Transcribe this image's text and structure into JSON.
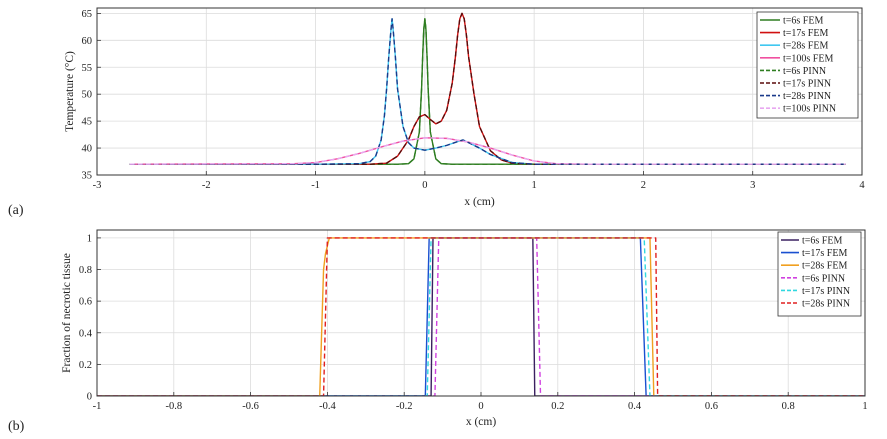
{
  "figure": {
    "panel_a_label": "(a)",
    "panel_b_label": "(b)"
  },
  "chart_data": [
    {
      "type": "line",
      "title": "",
      "xlabel": "x (cm)",
      "ylabel": "Temperature (°C)",
      "xlim": [
        -3,
        4
      ],
      "ylim": [
        35,
        66
      ],
      "xticks": [
        -3,
        -2,
        -1,
        0,
        1,
        2,
        3,
        4
      ],
      "yticks": [
        35,
        40,
        45,
        50,
        55,
        60,
        65
      ],
      "xtick_labels": [
        "-3",
        "-2",
        "-1",
        "0",
        "1",
        "2",
        "3",
        "4"
      ],
      "ytick_labels": [
        "35",
        "40",
        "45",
        "50",
        "55",
        "60",
        "65"
      ],
      "grid": true,
      "legend_position": "top-right",
      "series": [
        {
          "name": "t=6s FEM",
          "color": "#2e7d20",
          "dash": "solid",
          "x": [
            -2.7,
            -1.0,
            -0.6,
            -0.4,
            -0.25,
            -0.15,
            -0.1,
            -0.05,
            -0.03,
            -0.02,
            -0.01,
            0.0,
            0.01,
            0.02,
            0.03,
            0.05,
            0.1,
            0.15,
            0.25,
            0.4,
            0.6,
            1.0,
            3.85
          ],
          "y": [
            37,
            37,
            37,
            37,
            37,
            37.1,
            38,
            43,
            51,
            57,
            62,
            64,
            62,
            57,
            51,
            43,
            38,
            37.1,
            37,
            37,
            37,
            37,
            37
          ]
        },
        {
          "name": "t=17s FEM",
          "color": "#d01010",
          "dash": "solid",
          "x": [
            -2.7,
            -0.5,
            -0.35,
            -0.25,
            -0.15,
            -0.1,
            -0.05,
            0.0,
            0.05,
            0.1,
            0.15,
            0.2,
            0.25,
            0.28,
            0.3,
            0.32,
            0.34,
            0.36,
            0.38,
            0.4,
            0.45,
            0.5,
            0.6,
            0.7,
            0.8,
            1.0,
            3.85
          ],
          "y": [
            37,
            37,
            37.2,
            38.5,
            41.5,
            44,
            45.8,
            46.2,
            45.3,
            44.5,
            45,
            47,
            52,
            57,
            61,
            64,
            65,
            64,
            61,
            57,
            50,
            44,
            39.5,
            37.8,
            37.2,
            37,
            37
          ]
        },
        {
          "name": "t=28s FEM",
          "color": "#40c8f0",
          "dash": "solid",
          "x": [
            -2.7,
            -1.0,
            -0.6,
            -0.5,
            -0.45,
            -0.4,
            -0.37,
            -0.35,
            -0.33,
            -0.31,
            -0.3,
            -0.29,
            -0.27,
            -0.25,
            -0.2,
            -0.15,
            -0.1,
            0.0,
            0.1,
            0.2,
            0.3,
            0.35,
            0.4,
            0.5,
            0.6,
            0.8,
            1.0,
            3.85
          ],
          "y": [
            37,
            37,
            37.1,
            37.5,
            38.5,
            41.5,
            46,
            51,
            57,
            62,
            64,
            62,
            57,
            51,
            44,
            41,
            40,
            39.6,
            40,
            40.5,
            41.2,
            41.5,
            41,
            40,
            38.8,
            37.3,
            37,
            37
          ]
        },
        {
          "name": "t=100s FEM",
          "color": "#f050a0",
          "dash": "solid",
          "x": [
            -2.7,
            -1.2,
            -1.0,
            -0.8,
            -0.6,
            -0.4,
            -0.2,
            0.0,
            0.2,
            0.4,
            0.6,
            0.8,
            1.0,
            1.2,
            1.5,
            3.85
          ],
          "y": [
            37,
            37.1,
            37.3,
            38,
            39,
            40.2,
            41.3,
            41.9,
            41.8,
            41.1,
            40,
            38.7,
            37.6,
            37.1,
            37,
            37
          ]
        },
        {
          "name": "t=6s PINN",
          "color": "#2e7d20",
          "dash": "dash",
          "x": [
            -2.7,
            -1.0,
            -0.6,
            -0.4,
            -0.25,
            -0.15,
            -0.1,
            -0.05,
            -0.03,
            -0.02,
            -0.01,
            0.0,
            0.01,
            0.02,
            0.03,
            0.05,
            0.1,
            0.15,
            0.25,
            0.4,
            0.6,
            1.0,
            3.85
          ],
          "y": [
            37,
            37,
            37,
            37,
            37,
            37.1,
            38,
            43,
            51,
            57,
            62,
            64,
            62,
            57,
            51,
            43,
            38,
            37.1,
            37,
            37,
            37,
            37,
            37
          ]
        },
        {
          "name": "t=17s PINN",
          "color": "#5a0a0a",
          "dash": "dash",
          "x": [
            -2.7,
            -0.5,
            -0.35,
            -0.25,
            -0.15,
            -0.1,
            -0.05,
            0.0,
            0.05,
            0.1,
            0.15,
            0.2,
            0.25,
            0.28,
            0.3,
            0.32,
            0.34,
            0.36,
            0.38,
            0.4,
            0.45,
            0.5,
            0.6,
            0.7,
            0.8,
            1.0,
            3.85
          ],
          "y": [
            37,
            37,
            37.2,
            38.5,
            41.5,
            44,
            45.8,
            46.2,
            45.3,
            44.5,
            45,
            47,
            52,
            57,
            61,
            64,
            65,
            64,
            61,
            57,
            50,
            44,
            39.5,
            37.8,
            37.2,
            37,
            37
          ]
        },
        {
          "name": "t=28s PINN",
          "color": "#1a3a8a",
          "dash": "dash",
          "x": [
            -2.7,
            -1.0,
            -0.6,
            -0.5,
            -0.45,
            -0.4,
            -0.37,
            -0.35,
            -0.33,
            -0.31,
            -0.3,
            -0.29,
            -0.27,
            -0.25,
            -0.2,
            -0.15,
            -0.1,
            0.0,
            0.1,
            0.2,
            0.3,
            0.35,
            0.4,
            0.5,
            0.6,
            0.8,
            1.0,
            3.85
          ],
          "y": [
            37,
            37,
            37.1,
            37.5,
            38.5,
            41.5,
            46,
            51,
            57,
            62,
            64,
            62,
            57,
            51,
            44,
            41,
            40,
            39.6,
            40,
            40.5,
            41.2,
            41.5,
            41,
            40,
            38.8,
            37.3,
            37,
            37
          ]
        },
        {
          "name": "t=100s PINN",
          "color": "#e8a8f0",
          "dash": "dash",
          "x": [
            -2.7,
            -1.2,
            -1.0,
            -0.8,
            -0.6,
            -0.4,
            -0.2,
            0.0,
            0.2,
            0.4,
            0.6,
            0.8,
            1.0,
            1.2,
            1.5,
            3.85
          ],
          "y": [
            37,
            37.1,
            37.3,
            38,
            39,
            40.2,
            41.3,
            41.9,
            41.8,
            41.1,
            40,
            38.7,
            37.6,
            37.1,
            37,
            37
          ]
        }
      ]
    },
    {
      "type": "line",
      "title": "",
      "xlabel": "x (cm)",
      "ylabel": "Fraction of necrotic tissue",
      "xlim": [
        -1,
        1
      ],
      "ylim": [
        0,
        1.05
      ],
      "xticks": [
        -1,
        -0.8,
        -0.6,
        -0.4,
        -0.2,
        0,
        0.2,
        0.4,
        0.6,
        0.8,
        1
      ],
      "yticks": [
        0,
        0.2,
        0.4,
        0.6,
        0.8,
        1
      ],
      "xtick_labels": [
        "-1",
        "-0.8",
        "-0.6",
        "-0.4",
        "-0.2",
        "0",
        "0.2",
        "0.4",
        "0.6",
        "0.8",
        "1"
      ],
      "ytick_labels": [
        "0",
        "0.2",
        "0.4",
        "0.6",
        "0.8",
        "1"
      ],
      "grid": true,
      "legend_position": "top-right",
      "series": [
        {
          "name": "t=6s FEM",
          "color": "#3a2060",
          "dash": "solid",
          "x": [
            -1,
            -0.13,
            -0.125,
            0.135,
            0.14,
            1
          ],
          "y": [
            0,
            0,
            1,
            1,
            0,
            0
          ]
        },
        {
          "name": "t=17s FEM",
          "color": "#1a50d0",
          "dash": "solid",
          "x": [
            -1,
            -0.145,
            -0.135,
            0.415,
            0.43,
            1
          ],
          "y": [
            0,
            0,
            1,
            1,
            0,
            0
          ]
        },
        {
          "name": "t=28s FEM",
          "color": "#f0a020",
          "dash": "solid",
          "x": [
            -1,
            -0.42,
            -0.41,
            -0.405,
            -0.395,
            0.44,
            0.45,
            1
          ],
          "y": [
            0,
            0,
            0.8,
            0.9,
            1,
            1,
            0,
            0
          ]
        },
        {
          "name": "t=6s PINN",
          "color": "#d040e0",
          "dash": "dash",
          "x": [
            -1,
            -0.12,
            -0.11,
            0.145,
            0.155,
            1
          ],
          "y": [
            0,
            0,
            1,
            1,
            0,
            0
          ]
        },
        {
          "name": "t=17s PINN",
          "color": "#30d8e0",
          "dash": "dash",
          "x": [
            -1,
            -0.14,
            -0.13,
            0.425,
            0.44,
            1
          ],
          "y": [
            0,
            0,
            1,
            1,
            0,
            0
          ]
        },
        {
          "name": "t=28s PINN",
          "color": "#e02020",
          "dash": "dash",
          "x": [
            -1,
            -0.41,
            -0.4,
            0.455,
            0.46,
            1
          ],
          "y": [
            0,
            0,
            1,
            1,
            0,
            0
          ]
        }
      ]
    }
  ]
}
